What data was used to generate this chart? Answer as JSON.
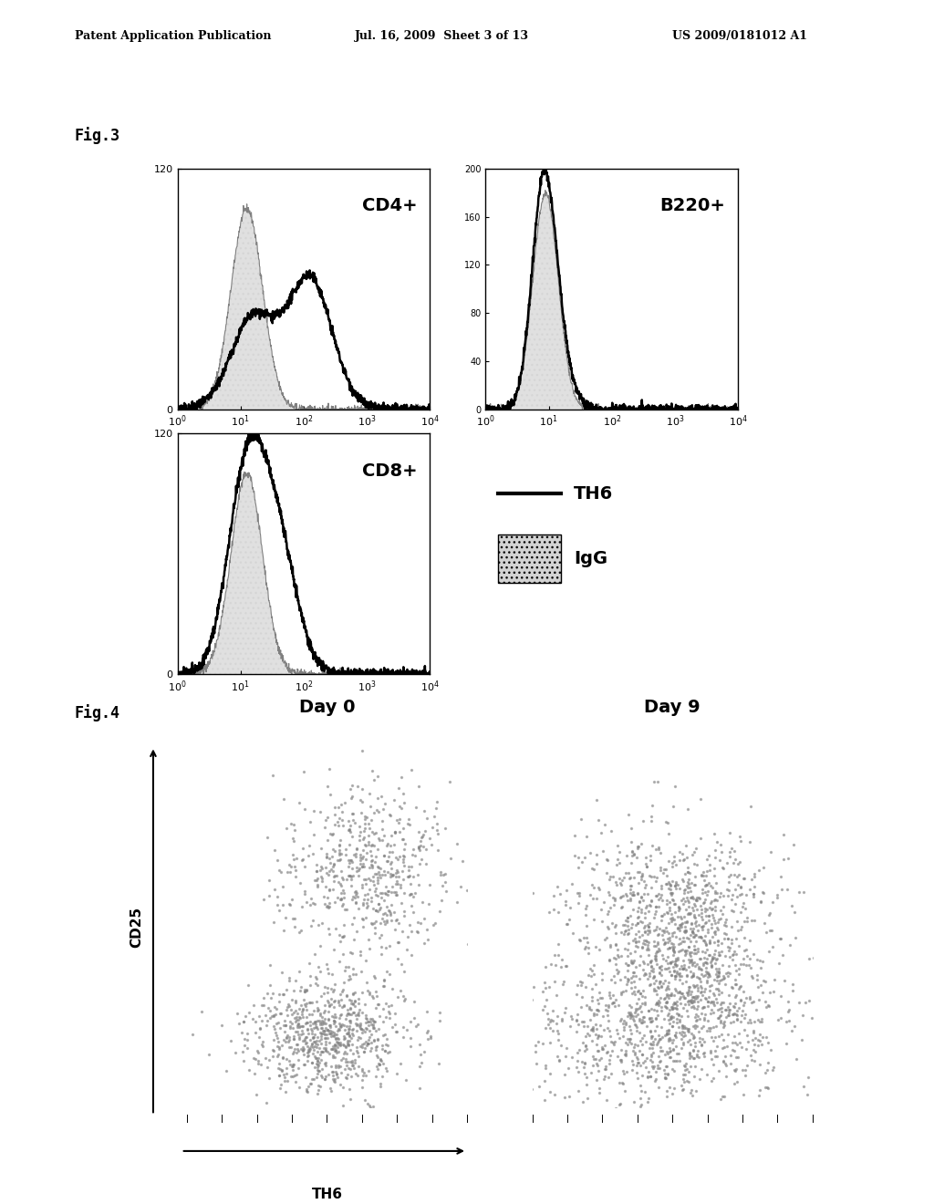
{
  "header_left": "Patent Application Publication",
  "header_mid": "Jul. 16, 2009  Sheet 3 of 13",
  "header_right": "US 2009/0181012 A1",
  "fig3_label": "Fig.3",
  "fig4_label": "Fig.4",
  "cd4_label": "CD4+",
  "cd8_label": "CD8+",
  "b220_label": "B220+",
  "day0_label": "Day 0",
  "day9_label": "Day 9",
  "th6_label": "TH6",
  "igg_label": "IgG",
  "cd25_label": "CD25",
  "th6_axis_label": "TH6",
  "background_color": "#ffffff",
  "plot_bg": "#ffffff",
  "border_color": "#000000"
}
